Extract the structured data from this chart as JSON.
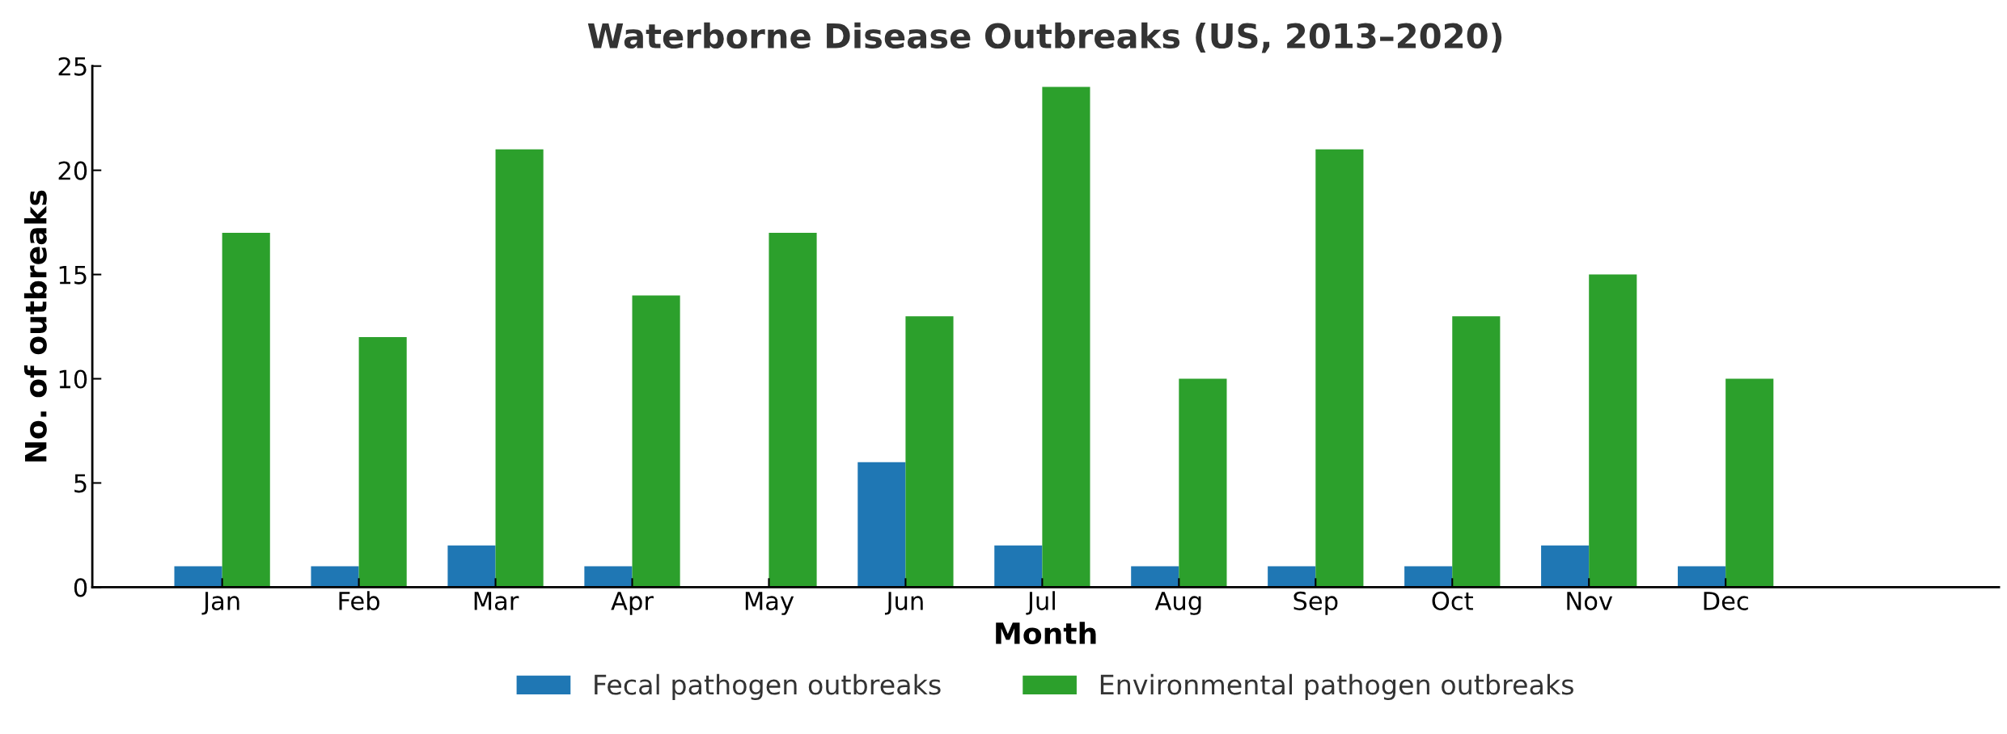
{
  "chart_data": {
    "type": "bar",
    "title": "Waterborne Disease Outbreaks (US, 2013–2020)",
    "xlabel": "Month",
    "ylabel": "No. of outbreaks",
    "categories": [
      "Jan",
      "Feb",
      "Mar",
      "Apr",
      "May",
      "Jun",
      "Jul",
      "Aug",
      "Sep",
      "Oct",
      "Nov",
      "Dec"
    ],
    "series": [
      {
        "name": "Fecal pathogen outbreaks",
        "color": "#1f77b4",
        "values": [
          1,
          1,
          2,
          1,
          0,
          6,
          2,
          1,
          1,
          1,
          2,
          1
        ]
      },
      {
        "name": "Environmental pathogen outbreaks",
        "color": "#2ca02c",
        "values": [
          17,
          12,
          21,
          14,
          17,
          13,
          24,
          10,
          21,
          13,
          15,
          10
        ]
      }
    ],
    "ylim": [
      0,
      25
    ],
    "yticks": [
      0,
      5,
      10,
      15,
      20,
      25
    ],
    "grid": false,
    "legend": "bottom"
  }
}
